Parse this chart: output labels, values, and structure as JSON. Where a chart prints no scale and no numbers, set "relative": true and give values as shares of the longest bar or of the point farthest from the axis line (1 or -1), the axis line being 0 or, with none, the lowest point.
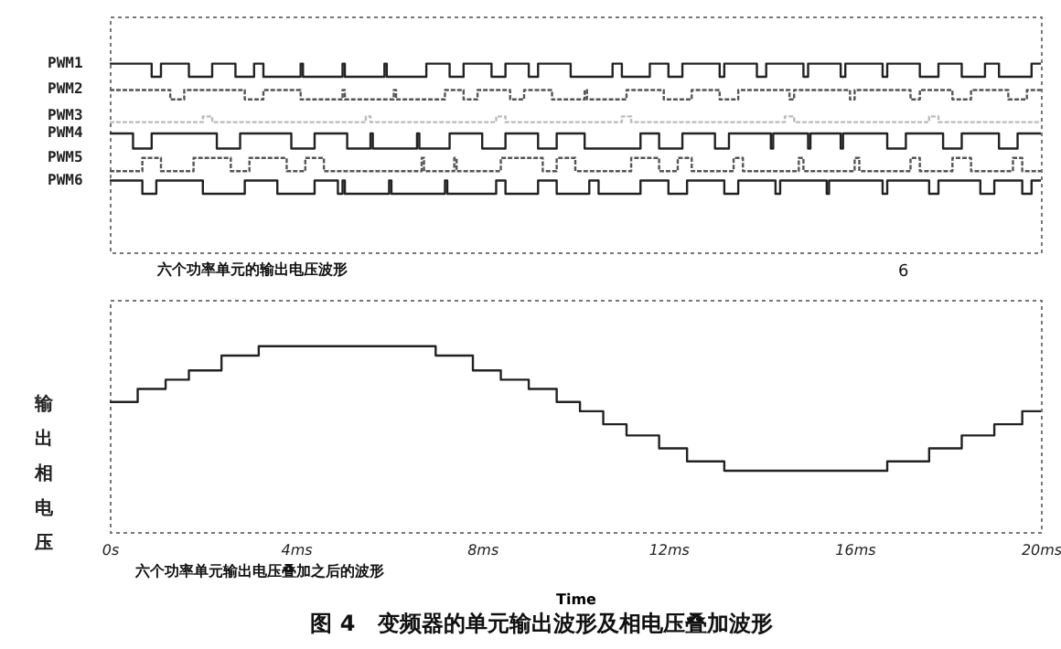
{
  "chart_data": [
    {
      "type": "step",
      "relative": true,
      "xlim": [
        0,
        20
      ],
      "tick_labels": false,
      "annotations": [
        "六个功率单元的输出电压波形",
        "6"
      ],
      "series": [
        {
          "name": "PWM1",
          "color": "#222222",
          "x": [
            0,
            0.9,
            1.1,
            1.7,
            2.2,
            2.7,
            3.1,
            3.3,
            4.1,
            4.15,
            5.0,
            5.05,
            5.9,
            5.95,
            6.8,
            7.3,
            7.6,
            8.2,
            8.5,
            9.0,
            9.2,
            9.9,
            10.8,
            11.0,
            11.6,
            12.0,
            12.3,
            13.1,
            13.2,
            13.9,
            14.1,
            14.9,
            15.0,
            15.7,
            15.8,
            16.6,
            16.7,
            17.4,
            17.8,
            18.3,
            18.8,
            19.1,
            19.8,
            20
          ],
          "values": [
            1,
            0.93,
            1,
            0.93,
            1,
            0.93,
            1,
            0.93,
            1,
            0.93,
            1,
            0.93,
            1,
            0.93,
            1,
            0.93,
            1,
            0.93,
            1,
            0.93,
            1,
            0.93,
            1,
            0.93,
            1,
            0.93,
            1,
            0.93,
            1,
            0.93,
            1,
            0.93,
            1,
            0.93,
            1,
            0.93,
            1,
            0.93,
            1,
            0.93,
            1,
            0.93,
            1,
            1
          ]
        },
        {
          "name": "PWM2",
          "color": "#555555",
          "line_style": "dotted",
          "x": [
            0,
            1.3,
            1.6,
            2.9,
            3.3,
            4.1,
            5.0,
            5.05,
            6.1,
            6.15,
            7.2,
            7.6,
            7.9,
            8.6,
            8.9,
            9.5,
            10.2,
            10.25,
            11.1,
            11.9,
            12.5,
            13.1,
            13.5,
            14.6,
            14.7,
            15.9,
            16.0,
            17.2,
            17.4,
            18.1,
            18.5,
            19.3,
            19.7,
            20
          ],
          "values": [
            0.86,
            0.81,
            0.86,
            0.81,
            0.86,
            0.81,
            0.86,
            0.81,
            0.86,
            0.81,
            0.86,
            0.81,
            0.86,
            0.81,
            0.86,
            0.81,
            0.86,
            0.81,
            0.86,
            0.81,
            0.86,
            0.81,
            0.86,
            0.81,
            0.86,
            0.81,
            0.86,
            0.81,
            0.86,
            0.81,
            0.86,
            0.81,
            0.86,
            0.86
          ]
        },
        {
          "name": "PWM3",
          "color": "#bbbbbb",
          "line_style": "dotted",
          "x": [
            0,
            2.0,
            2.2,
            5.5,
            5.6,
            8.3,
            8.5,
            11.0,
            11.2,
            14.5,
            14.7,
            17.6,
            17.8,
            20
          ],
          "values": [
            0.69,
            0.72,
            0.69,
            0.72,
            0.69,
            0.72,
            0.69,
            0.72,
            0.69,
            0.72,
            0.69,
            0.72,
            0.69,
            0.69
          ]
        },
        {
          "name": "PWM4",
          "color": "#222222",
          "x": [
            0,
            0.5,
            0.9,
            2.3,
            2.8,
            3.9,
            4.4,
            5.1,
            5.6,
            5.65,
            6.6,
            6.65,
            7.3,
            8.0,
            8.5,
            9.2,
            9.6,
            10.2,
            11.4,
            11.8,
            12.3,
            13.0,
            13.3,
            14.2,
            14.25,
            15.0,
            15.05,
            15.7,
            15.75,
            16.7,
            17.1,
            17.9,
            18.3,
            19.1,
            19.5,
            20
          ],
          "values": [
            0.63,
            0.55,
            0.63,
            0.55,
            0.63,
            0.55,
            0.63,
            0.55,
            0.63,
            0.55,
            0.63,
            0.55,
            0.63,
            0.55,
            0.63,
            0.55,
            0.63,
            0.55,
            0.63,
            0.55,
            0.63,
            0.55,
            0.63,
            0.55,
            0.63,
            0.55,
            0.63,
            0.55,
            0.63,
            0.55,
            0.63,
            0.55,
            0.63,
            0.55,
            0.63,
            0.63
          ]
        },
        {
          "name": "PWM5",
          "color": "#555555",
          "line_style": "dotted",
          "x": [
            0,
            0.7,
            1.1,
            1.8,
            2.6,
            3.0,
            3.8,
            4.2,
            4.6,
            6.7,
            6.75,
            7.4,
            7.45,
            8.4,
            9.3,
            9.6,
            10.0,
            11.2,
            11.8,
            12.2,
            12.5,
            13.4,
            13.6,
            14.8,
            14.9,
            16.0,
            16.1,
            17.2,
            17.4,
            18.1,
            18.5,
            19.4,
            19.6,
            20
          ],
          "values": [
            0.43,
            0.5,
            0.43,
            0.5,
            0.43,
            0.5,
            0.43,
            0.5,
            0.43,
            0.5,
            0.43,
            0.5,
            0.43,
            0.5,
            0.43,
            0.5,
            0.43,
            0.5,
            0.43,
            0.5,
            0.43,
            0.5,
            0.43,
            0.5,
            0.43,
            0.5,
            0.43,
            0.5,
            0.43,
            0.5,
            0.43,
            0.5,
            0.43,
            0.43
          ]
        },
        {
          "name": "PWM6",
          "color": "#222222",
          "x": [
            0,
            0.7,
            1.0,
            2.0,
            2.9,
            3.6,
            4.4,
            4.9,
            5.0,
            5.05,
            6.0,
            6.05,
            7.2,
            7.25,
            8.3,
            8.5,
            9.2,
            9.6,
            10.3,
            10.5,
            11.4,
            12.0,
            12.4,
            13.2,
            13.5,
            14.3,
            14.4,
            15.4,
            15.45,
            16.6,
            16.7,
            17.6,
            17.8,
            18.7,
            19.0,
            19.6,
            19.8,
            20
          ],
          "values": [
            0.38,
            0.31,
            0.38,
            0.31,
            0.38,
            0.31,
            0.38,
            0.31,
            0.38,
            0.31,
            0.38,
            0.31,
            0.38,
            0.31,
            0.38,
            0.31,
            0.38,
            0.31,
            0.38,
            0.31,
            0.38,
            0.31,
            0.38,
            0.31,
            0.38,
            0.31,
            0.38,
            0.31,
            0.38,
            0.31,
            0.38,
            0.31,
            0.38,
            0.31,
            0.38,
            0.31,
            0.38,
            0.38
          ]
        }
      ]
    },
    {
      "type": "step",
      "relative": true,
      "xlim": [
        0,
        20
      ],
      "xticks": [
        {
          "value": 0,
          "label": "0s"
        },
        {
          "value": 4,
          "label": "4ms"
        },
        {
          "value": 8,
          "label": "8ms"
        },
        {
          "value": 12,
          "label": "12ms"
        },
        {
          "value": 16,
          "label": "16ms"
        },
        {
          "value": 20,
          "label": "20ms"
        }
      ],
      "xlabel": "Time",
      "ylabel": "输出相电压",
      "annotations": [
        "六个功率单元输出电压叠加之后的波形",
        "图 4　变频器的单元输出波形及相电压叠加波形"
      ],
      "series": [
        {
          "color": "#222222",
          "x": [
            0,
            0.6,
            1.2,
            1.7,
            2.4,
            3.2,
            7.0,
            7.8,
            8.4,
            9.0,
            9.6,
            10.1,
            10.6,
            11.1,
            11.8,
            12.4,
            13.2,
            16.7,
            17.6,
            18.3,
            19.0,
            19.6,
            20
          ],
          "values": [
            0.7,
            0.77,
            0.82,
            0.87,
            0.95,
            1.0,
            0.95,
            0.87,
            0.82,
            0.77,
            0.7,
            0.65,
            0.58,
            0.52,
            0.45,
            0.38,
            0.33,
            0.38,
            0.45,
            0.52,
            0.58,
            0.65,
            0.65
          ]
        }
      ]
    }
  ]
}
